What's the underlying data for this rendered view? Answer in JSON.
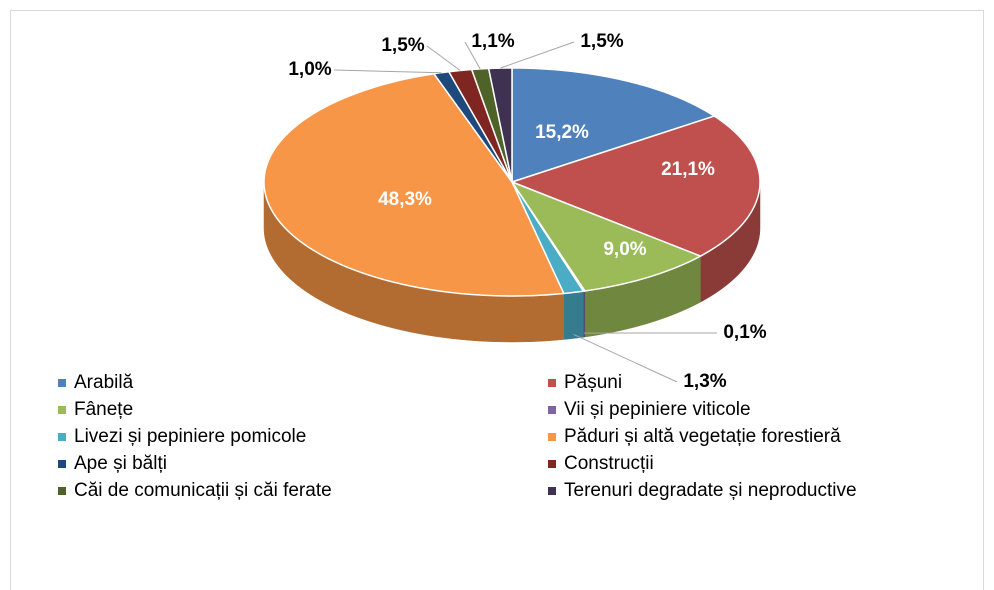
{
  "chart_data": {
    "type": "pie3d",
    "categories": [
      "Arabilă",
      "Pășuni",
      "Fânețe",
      "Vii și pepiniere viticole",
      "Livezi și pepiniere pomicole",
      "Păduri și altă vegetație forestieră",
      "Ape și bălți",
      "Construcții",
      "Căi de comunicații și căi ferate",
      "Terenuri degradate și neproductive"
    ],
    "values": [
      15.2,
      21.1,
      9.0,
      0.1,
      1.3,
      48.3,
      1.0,
      1.5,
      1.1,
      1.5
    ],
    "value_labels": [
      "15,2%",
      "21,1%",
      "9,0%",
      "0,1%",
      "1,3%",
      "48,3%",
      "1,0%",
      "1,5%",
      "1,1%",
      "1,5%"
    ],
    "colors": [
      "#4f81bd",
      "#c0504d",
      "#9bbb59",
      "#8064a2",
      "#4bacc6",
      "#f79646",
      "#1f497d",
      "#7f2623",
      "#4f6228",
      "#3f3151"
    ],
    "legend": "bottom"
  }
}
